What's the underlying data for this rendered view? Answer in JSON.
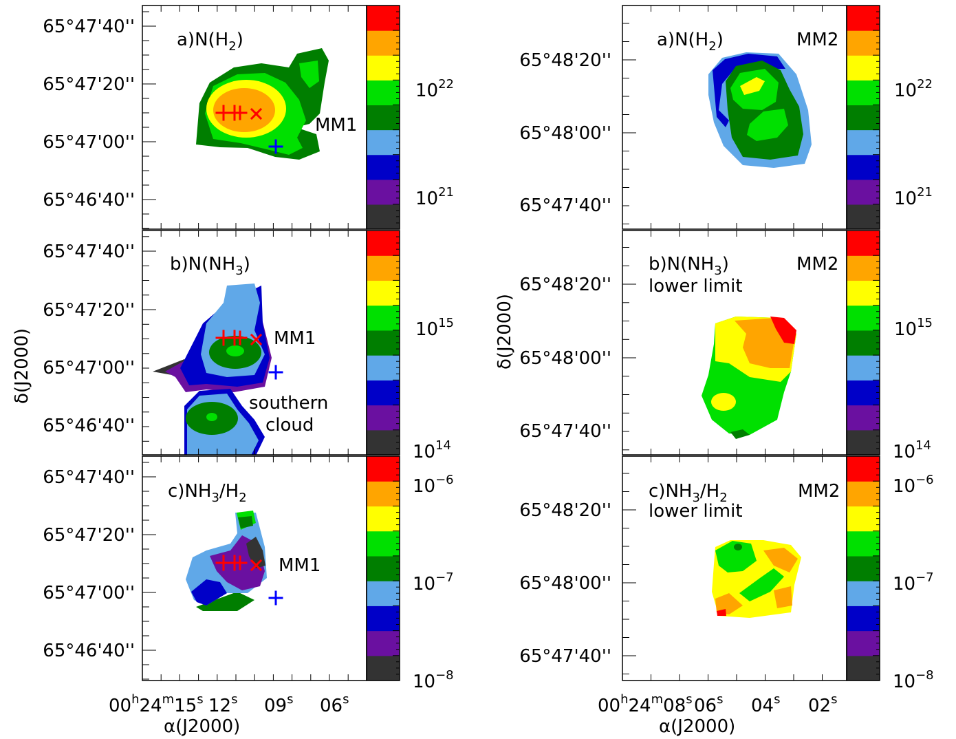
{
  "colorbar_colors": [
    "#333333",
    "#6a10a0",
    "#0000c8",
    "#60a8e8",
    "#007e00",
    "#00e000",
    "#ffff00",
    "#ffa500",
    "#ff0000"
  ],
  "axes": {
    "ylabel": "δ(J2000)",
    "xlabel": "α(J2000)",
    "left_xticks": [
      "00h24m15s",
      "12s",
      "09s",
      "06s"
    ],
    "right_xticks": [
      "00h24m08s",
      "06s",
      "04s",
      "02s"
    ],
    "left_yticks": [
      "65°47'40''",
      "65°47'20''",
      "65°47'00''",
      "65°46'40''"
    ],
    "right_yticks": [
      "65°48'20''",
      "65°48'00''",
      "65°47'40''"
    ]
  },
  "panels": {
    "L1": {
      "label": "a)N(H2)",
      "annot": "MM1"
    },
    "R1": {
      "label": "a)N(H2)",
      "tag": "MM2"
    },
    "L2": {
      "label": "b)N(NH3)",
      "annot": "MM1",
      "annot2": "southern",
      "annot3": "cloud"
    },
    "R2": {
      "label": "b)N(NH3)",
      "sub": "lower limit",
      "tag": "MM2"
    },
    "L3": {
      "label": "c)NH3/H2",
      "annot": "MM1"
    },
    "R3": {
      "label": "c)NH3/H2",
      "sub": "lower limit",
      "tag": "MM2"
    }
  },
  "colorbars": {
    "row1": [
      "10^22",
      "10^21"
    ],
    "row2": [
      "10^15",
      "10^14"
    ],
    "row3": [
      "10^-6",
      "10^-7",
      "10^-8"
    ]
  },
  "chart_data": [
    {
      "type": "heatmap",
      "panel": "a) N(H2) MM1",
      "quantity": "N(H2)",
      "color_scale": "log",
      "colorbar_ticks": [
        1e+22,
        1e+21
      ],
      "markers": [
        {
          "symbol": "+",
          "color": "red",
          "count": 3
        },
        {
          "symbol": "x",
          "color": "red",
          "count": 1
        },
        {
          "symbol": "+",
          "color": "blue",
          "count": 1
        }
      ]
    },
    {
      "type": "heatmap",
      "panel": "a) N(H2) MM2",
      "quantity": "N(H2)",
      "color_scale": "log",
      "colorbar_ticks": [
        1e+22,
        1e+21
      ]
    },
    {
      "type": "heatmap",
      "panel": "b) N(NH3) MM1",
      "quantity": "N(NH3)",
      "color_scale": "log",
      "colorbar_ticks": [
        1000000000000000.0,
        100000000000000.0
      ]
    },
    {
      "type": "heatmap",
      "panel": "b) N(NH3) MM2 lower limit",
      "quantity": "N(NH3)",
      "color_scale": "log",
      "colorbar_ticks": [
        1000000000000000.0,
        100000000000000.0
      ]
    },
    {
      "type": "heatmap",
      "panel": "c) NH3/H2 MM1",
      "quantity": "NH3/H2",
      "color_scale": "log",
      "colorbar_ticks": [
        1e-06,
        1e-07,
        1e-08
      ]
    },
    {
      "type": "heatmap",
      "panel": "c) NH3/H2 MM2 lower limit",
      "quantity": "NH3/H2",
      "color_scale": "log",
      "colorbar_ticks": [
        1e-06,
        1e-07,
        1e-08
      ]
    }
  ]
}
